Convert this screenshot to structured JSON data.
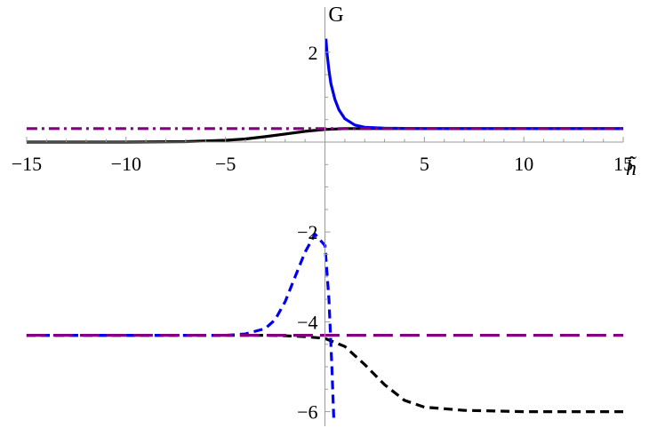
{
  "chart_data": {
    "type": "line",
    "title": "",
    "xlabel": "h̃",
    "ylabel": "G",
    "xlim": [
      -15,
      15
    ],
    "ylim": [
      -6.25,
      2.4
    ],
    "x_ticks": [
      -15,
      -10,
      -5,
      5,
      10,
      15
    ],
    "x_tick_labels": [
      "−15",
      "−10",
      "−5",
      "5",
      "10",
      "15"
    ],
    "y_ticks": [
      -6,
      -4,
      -2,
      2
    ],
    "y_tick_labels": [
      "−6",
      "−4",
      "−2",
      "2"
    ],
    "grid": false,
    "legend": "none",
    "series": [
      {
        "style": "solid",
        "color": "#000000",
        "x": [
          -15,
          -10,
          -7,
          -5,
          -4,
          -3,
          -2,
          -1,
          0,
          1,
          2,
          3,
          5,
          10,
          15
        ],
        "y": [
          0.0,
          0.0,
          0.01,
          0.04,
          0.07,
          0.12,
          0.18,
          0.24,
          0.28,
          0.3,
          0.3,
          0.3,
          0.3,
          0.3,
          0.3
        ]
      },
      {
        "style": "solid",
        "color": "#0000ee",
        "x": [
          0.05,
          0.1,
          0.2,
          0.3,
          0.5,
          0.7,
          1.0,
          1.5,
          2.0,
          3.0,
          5.0,
          10.0,
          15.0
        ],
        "y": [
          2.3,
          2.0,
          1.6,
          1.3,
          0.95,
          0.72,
          0.52,
          0.38,
          0.33,
          0.31,
          0.3,
          0.3,
          0.3
        ]
      },
      {
        "style": "dashdot",
        "color": "#800080",
        "x": [
          -15,
          15
        ],
        "y": [
          0.3,
          0.3
        ]
      },
      {
        "style": "dashed",
        "color": "#000000",
        "x": [
          -15,
          -10,
          -5,
          -3,
          -2,
          -1,
          0,
          1,
          2,
          3,
          4,
          5,
          7,
          10,
          15
        ],
        "y": [
          -4.3,
          -4.3,
          -4.3,
          -4.3,
          -4.31,
          -4.33,
          -4.37,
          -4.55,
          -4.95,
          -5.4,
          -5.75,
          -5.9,
          -5.97,
          -6.0,
          -6.0
        ]
      },
      {
        "style": "dashed",
        "color": "#0000ee",
        "x": [
          -15,
          -5,
          -4,
          -3,
          -2.5,
          -2,
          -1.5,
          -1,
          -0.5,
          0,
          0.2,
          0.35,
          0.45
        ],
        "y": [
          -4.3,
          -4.3,
          -4.27,
          -4.15,
          -3.95,
          -3.55,
          -3.0,
          -2.45,
          -2.05,
          -2.3,
          -3.5,
          -5.0,
          -6.25
        ]
      },
      {
        "style": "longdash",
        "color": "#800080",
        "x": [
          -15,
          15
        ],
        "y": [
          -4.3,
          -4.3
        ]
      }
    ]
  }
}
